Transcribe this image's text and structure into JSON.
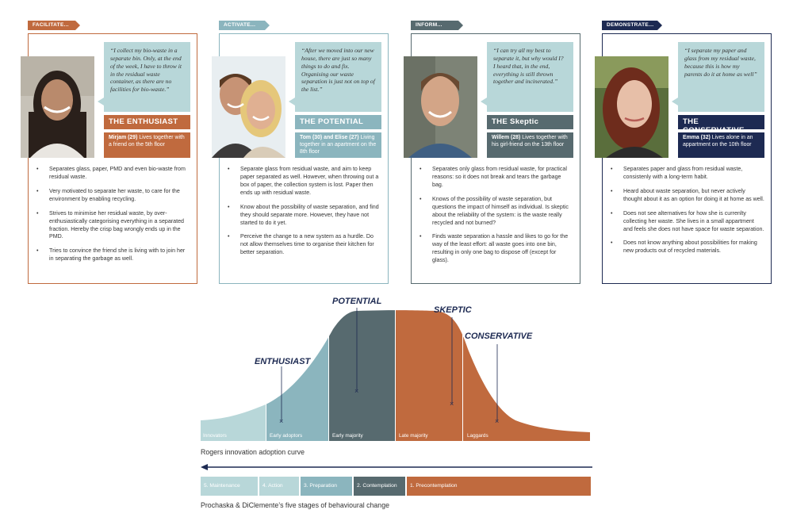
{
  "colors": {
    "enthusiast": "#c06a3e",
    "potential": "#8bb5be",
    "skeptic": "#576a6f",
    "conservative": "#1d2a52",
    "quote_bg": "#b8d7d9"
  },
  "personas": [
    {
      "tag": "FACILITATE...",
      "quote": "“I collect my bio-waste in a separate bin. Only, at the end of the week, I have to throw it in the residual waste container, as there are no facilities for bio-waste.”",
      "title": "THE ENTHUSIAST",
      "name": "Mirjam (29)",
      "desc": "Lives together with a friend on the 5th floor",
      "bullets": [
        "Separates glass, paper, PMD and even bio-waste from residual waste.",
        "Very motivated to separate her waste, to care for the environment by enabling recycling.",
        "Strives to minimise her residual waste, by over-enthusiastically categorising everything in a separated fraction. Hereby the crisp bag wrongly ends up in the PMD.",
        "Tries to convince the friend she is living with to join her in separating the garbage as well."
      ]
    },
    {
      "tag": "ACTIVATE...",
      "quote": "“After we moved into our new house, there are just so many things to do and fix. Organising our waste separation is just not on top of the list.”",
      "title": "THE POTENTIAL",
      "name": "Tom (30) and Elise (27)",
      "desc": "Living together in an apartment on the 8th floor",
      "bullets": [
        "Separate glass from residual waste, and aim to keep paper separated as well. However, when throwing out a box of paper, the collection system is lost. Paper then ends up with residual waste.",
        "Know about the possibility of waste separation, and find they should separate more. However, they have not started to do it yet.",
        "Perceive the change to a new system as a hurdle. Do not allow themselves time to organise their kitchen for better separation."
      ]
    },
    {
      "tag": "INFORM...",
      "quote": "“I can try all my best to separate it, but why would I? I heard that, in the end, everything is still thrown together and incinerated.”",
      "title": "THE Skeptic",
      "name": "Willem (28)",
      "desc": "Lives together with his girl-friend on the 13th floor",
      "bullets": [
        "Separates only glass from residual waste, for practical reasons: so it does not break and tears the garbage bag.",
        "Knows of the possibility of waste separation, but questions the impact of himself as individual. Is skeptic about the reliability of the system: is the waste really recycled and not burned?",
        "Finds waste separation a hassle and likes to go for the way of the least effort: all waste goes into one bin, resulting in only one bag to dispose off (except for glass)."
      ]
    },
    {
      "tag": "DEMONSTRATE...",
      "quote": "“I separate my paper and glass from my residual waste, because this is how my parents do it at home as well”",
      "title": "THE CONSERVATIVE",
      "name": "Emma (32)",
      "desc": "Lives alone in an appartment on the 10th floor",
      "bullets": [
        "Separates paper and glass from residual waste, consistenly with a long-term habit.",
        "Heard about waste separation, but never actively thought about it as an option for doing it at home as well.",
        "Does not see alternatives for how she is currenlty collecting her waste. She lives in a small appartment and feels she does not have space for waste separation.",
        "Does not know anything about possibilities for making new products out of recycled materials."
      ]
    }
  ],
  "curve": {
    "segments": [
      "Innovators",
      "Early adoptors",
      "Early majority",
      "Late majority",
      "Laggards"
    ],
    "labels": [
      "ENTHUSIAST",
      "POTENTIAL",
      "SKEPTIC",
      "CONSERVATIVE"
    ],
    "marker": "×",
    "caption": "Rogers innovation adoption curve"
  },
  "stages": {
    "items": [
      "5. Maintenance",
      "4. Action",
      "3. Preparation",
      "2. Contemplation",
      "1. Precontemplation"
    ],
    "caption": "Prochaska & DiClemente’s five stages of behavioural change"
  }
}
